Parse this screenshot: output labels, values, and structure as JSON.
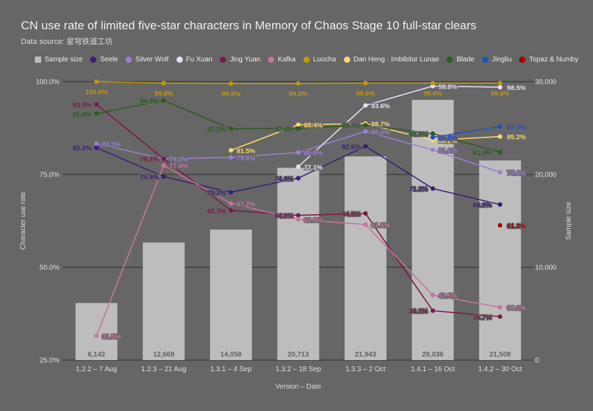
{
  "chart_data": {
    "type": "bar",
    "title": "CN use rate of limited five-star characters in Memory of Chaos Stage 10 full-star clears",
    "subtitle": "Data source: 星穹铁道工坊",
    "xlabel": "Version – Date",
    "ylabel": "Character use rate",
    "y2label": "Sample size",
    "ylim": [
      25,
      100
    ],
    "y2lim": [
      0,
      30000
    ],
    "yticks": [
      "25.0%",
      "50.0%",
      "75.0%",
      "100.0%"
    ],
    "y2ticks": [
      "0",
      "10,000",
      "20,000",
      "30,000"
    ],
    "categories": [
      "1.2.2 – 7 Aug",
      "1.2.3 – 21 Aug",
      "1.3.1 – 4 Sep",
      "1.3.2 – 18 Sep",
      "1.3.3 – 2 Oct",
      "1.4.1 – 16 Oct",
      "1.4.2 – 30 Oct"
    ],
    "bars": {
      "name": "Sample size",
      "color": "#bdbdbd",
      "values": [
        6142,
        12669,
        14058,
        20713,
        21943,
        28036,
        21508
      ],
      "labels": [
        "6,142",
        "12,669",
        "14,058",
        "20,713",
        "21,943",
        "28,036",
        "21,508"
      ]
    },
    "series": [
      {
        "name": "Seele",
        "color": "#3c1e78",
        "values": [
          82.2,
          74.4,
          70.2,
          74.0,
          82.6,
          71.2,
          66.9
        ],
        "labels": [
          "82.2%",
          "74.4%",
          "70.2%",
          "74.0%",
          "82.6%",
          "71.2%",
          "66.9%"
        ]
      },
      {
        "name": "Silver Wolf",
        "color": "#9b7fd4",
        "values": [
          83.3,
          79.2,
          79.6,
          80.9,
          86.6,
          81.6,
          75.6
        ],
        "labels": [
          "83.3%",
          "79.2%",
          "79.6%",
          "80.9%",
          "86.6%",
          "81.6%",
          "75.6%"
        ]
      },
      {
        "name": "Fu Xuan",
        "color": "#e8e0f2",
        "values": [
          null,
          null,
          null,
          77.1,
          93.6,
          98.8,
          98.5
        ],
        "labels": [
          "",
          "",
          "",
          "77.1%",
          "93.6%",
          "98.8%",
          "98.5%"
        ]
      },
      {
        "name": "Jing Yuan",
        "color": "#7a1a48",
        "values": [
          93.9,
          79.2,
          65.3,
          64.0,
          64.5,
          38.3,
          36.7
        ],
        "labels": [
          "93.9%",
          "79.2%",
          "65.3%",
          "64.0%",
          "64.5%",
          "38.3%",
          "36.7%"
        ]
      },
      {
        "name": "Kafka",
        "color": "#c9739f",
        "values": [
          31.5,
          77.4,
          67.2,
          62.9,
          61.5,
          42.5,
          39.2
        ],
        "labels": [
          "31.5%",
          "77.4%",
          "67.2%",
          "62.9%",
          "61.5%",
          "42.5%",
          "39.2%"
        ]
      },
      {
        "name": "Luocha",
        "color": "#c49a00",
        "values": [
          100.0,
          99.6,
          99.5,
          99.5,
          99.6,
          99.6,
          99.6
        ],
        "labels": [
          "100.0%",
          "99.6%",
          "99.5%",
          "99.5%",
          "99.6%",
          "99.6%",
          "99.6%"
        ]
      },
      {
        "name": "Dan Heng · Imbibitor Lunae",
        "color": "#ffd86b",
        "values": [
          null,
          null,
          81.5,
          88.4,
          88.7,
          84.2,
          85.2
        ],
        "labels": [
          "",
          "",
          "81.5%",
          "88.4%",
          "88.7%",
          "84.2%",
          "85.2%"
        ]
      },
      {
        "name": "Blade",
        "color": "#2e5b1e",
        "values": [
          91.4,
          94.9,
          87.3,
          87.4,
          88.3,
          86.0,
          81.0
        ],
        "labels": [
          "91.4%",
          "94.9%",
          "87.3%",
          "87.4%",
          "88.3%",
          "86.0%",
          "81.0%"
        ]
      },
      {
        "name": "Jingliu",
        "color": "#1e50c8",
        "values": [
          null,
          null,
          null,
          null,
          null,
          85.0,
          87.9
        ],
        "labels": [
          "",
          "",
          "",
          "",
          "",
          "85.0%",
          "87.9%"
        ]
      },
      {
        "name": "Topaz & Numby",
        "color": "#a00000",
        "values": [
          null,
          null,
          null,
          null,
          null,
          null,
          61.3
        ],
        "labels": [
          "",
          "",
          "",
          "",
          "",
          "",
          "61.3%"
        ]
      }
    ]
  }
}
